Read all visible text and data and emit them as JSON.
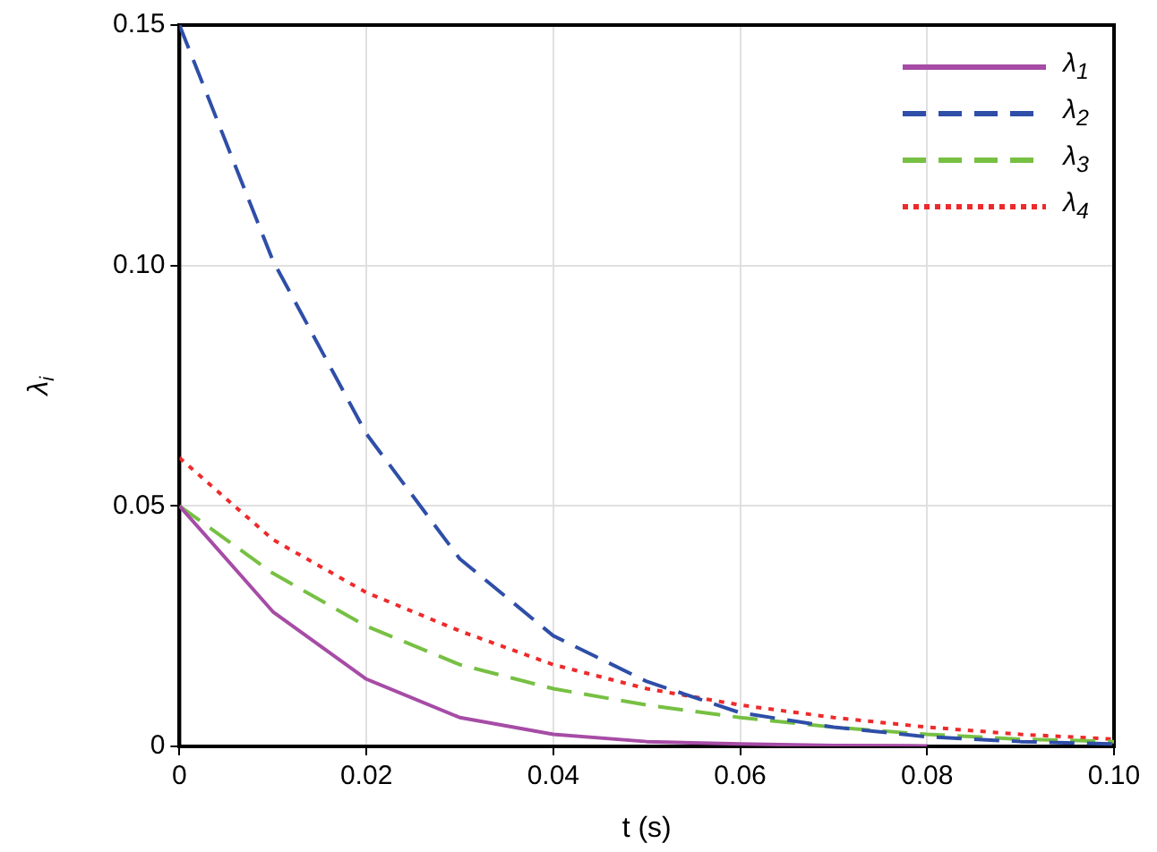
{
  "chart_data": {
    "type": "line",
    "xlabel": "t (s)",
    "ylabel": "λ$_{i}$",
    "x": [
      0,
      0.01,
      0.02,
      0.03,
      0.04,
      0.05,
      0.06,
      0.07,
      0.08,
      0.09,
      0.1
    ],
    "series": [
      {
        "name": "λ$_{1}$",
        "color": "#a64ca6",
        "line_style": "solid",
        "values": [
          0.05,
          0.028,
          0.014,
          0.006,
          0.0025,
          0.001,
          0.0005,
          0.0002,
          0.0001,
          null,
          null
        ]
      },
      {
        "name": "λ$_{2}$",
        "color": "#2e4ea8",
        "line_style": "dashed",
        "values": [
          0.15,
          0.101,
          0.065,
          0.039,
          0.023,
          0.0135,
          0.007,
          0.004,
          0.002,
          0.001,
          0.0005
        ]
      },
      {
        "name": "λ$_{3}$",
        "color": "#77c043",
        "line_style": "dashed",
        "values": [
          0.05,
          0.036,
          0.025,
          0.017,
          0.012,
          0.0086,
          0.006,
          0.004,
          0.0025,
          0.0015,
          0.001
        ]
      },
      {
        "name": "λ$_{4}$",
        "color": "#ee2a2a",
        "line_style": "dotted",
        "values": [
          0.06,
          0.043,
          0.032,
          0.024,
          0.017,
          0.012,
          0.0086,
          0.006,
          0.004,
          0.0025,
          0.0015
        ]
      }
    ],
    "xlim": [
      0,
      0.1
    ],
    "xticks": [
      0,
      {
        "value": 0.02,
        "label": "0.02"
      },
      {
        "value": 0.04,
        "label": "0.04"
      },
      {
        "value": 0.06,
        "label": "0.06"
      },
      {
        "value": 0.08,
        "label": "0.08"
      },
      {
        "value": 0.1,
        "label": "0.10"
      }
    ],
    "ylim": [
      0,
      0.15
    ],
    "yticks": [
      0,
      {
        "value": 0.05,
        "label": "0.05"
      },
      {
        "value": 0.1,
        "label": "0.10"
      },
      {
        "value": 0.15,
        "label": "0.15"
      }
    ],
    "grid": true,
    "legend": "top right"
  }
}
